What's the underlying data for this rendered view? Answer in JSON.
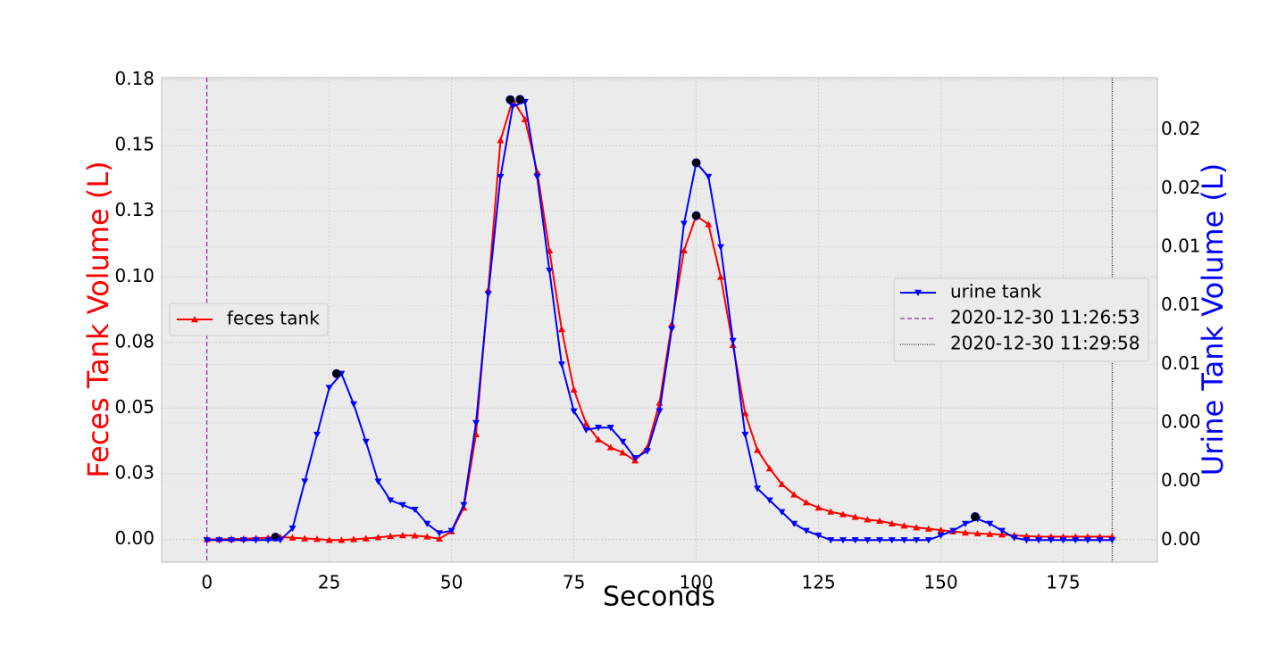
{
  "chart_data": {
    "type": "line",
    "xlabel": "Seconds",
    "ylabel": "Feces Tank Volume (L)",
    "y2label": "Urine Tank Volume (L)",
    "xlim": [
      -9.25,
      194.25
    ],
    "xticks": [
      0,
      25,
      50,
      75,
      100,
      125,
      150,
      175
    ],
    "ylim": [
      -0.0087,
      0.1759
    ],
    "yticks": [
      {
        "value": 0,
        "label": "0.00"
      },
      {
        "value": 0.025,
        "label": "0.03"
      },
      {
        "value": 0.05,
        "label": "0.05"
      },
      {
        "value": 0.075,
        "label": "0.08"
      },
      {
        "value": 0.1,
        "label": "0.10"
      },
      {
        "value": 0.125,
        "label": "0.13"
      },
      {
        "value": 0.15,
        "label": "0.15"
      },
      {
        "value": 0.175,
        "label": "0.18"
      }
    ],
    "y2lim": [
      -0.00094,
      0.01973
    ],
    "y2ticks": [
      {
        "value": 0,
        "label": "0.00"
      },
      {
        "value": 0.0025,
        "label": "0.00"
      },
      {
        "value": 0.005,
        "label": "0.00"
      },
      {
        "value": 0.0075,
        "label": "0.01"
      },
      {
        "value": 0.01,
        "label": "0.01"
      },
      {
        "value": 0.0125,
        "label": "0.01"
      },
      {
        "value": 0.015,
        "label": "0.02"
      },
      {
        "value": 0.0175,
        "label": "0.02"
      }
    ],
    "grid": true,
    "x": [
      0,
      2.5,
      5,
      7.5,
      10,
      12.5,
      15,
      17.5,
      20,
      22.5,
      25,
      27.5,
      30,
      32.5,
      35,
      37.5,
      40,
      42.5,
      45,
      47.5,
      50,
      52.5,
      55,
      57.5,
      60,
      62.5,
      65,
      67.5,
      70,
      72.5,
      75,
      77.5,
      80,
      82.5,
      85,
      87.5,
      90,
      92.5,
      95,
      97.5,
      100,
      102.5,
      105,
      107.5,
      110,
      112.5,
      115,
      117.5,
      120,
      122.5,
      125,
      127.5,
      130,
      132.5,
      135,
      137.5,
      140,
      142.5,
      145,
      147.5,
      150,
      152.5,
      155,
      157.5,
      160,
      162.5,
      165,
      167.5,
      170,
      172.5,
      175,
      177.5,
      180,
      182.5,
      185
    ],
    "series": [
      {
        "name": "feces tank",
        "color": "#ff0000",
        "marker": "up",
        "legend": "left",
        "values": [
          0,
          0,
          0.0001,
          0.0002,
          0.0004,
          0.0006,
          0.0008,
          0.0006,
          0.0003,
          0.0001,
          -0.0003,
          -0.0003,
          0,
          0.0003,
          0.0007,
          0.0012,
          0.0015,
          0.0014,
          0.001,
          0.0002,
          0.003,
          0.012,
          0.04,
          0.095,
          0.152,
          0.1675,
          0.16,
          0.14,
          0.11,
          0.08,
          0.057,
          0.044,
          0.038,
          0.035,
          0.033,
          0.03,
          0.035,
          0.052,
          0.082,
          0.11,
          0.1233,
          0.12,
          0.1,
          0.074,
          0.048,
          0.034,
          0.027,
          0.021,
          0.017,
          0.014,
          0.012,
          0.0105,
          0.0095,
          0.0085,
          0.0075,
          0.007,
          0.006,
          0.0052,
          0.0045,
          0.004,
          0.0035,
          0.003,
          0.0025,
          0.0022,
          0.002,
          0.0018,
          0.0015,
          0.0012,
          0.001,
          0.001,
          0.001,
          0.001,
          0.001,
          0.001,
          0.001
        ],
        "peaks_x": [
          14,
          62,
          100
        ],
        "peaks_y": [
          0.0008,
          0.1675,
          0.1233
        ]
      },
      {
        "name": "urine tank",
        "color": "#0000ff",
        "marker": "down",
        "axis": "y2",
        "legend": "right",
        "values": [
          0,
          0,
          0,
          0,
          0,
          0,
          0,
          0.0005,
          0.0025,
          0.0045,
          0.0065,
          0.0071,
          0.0058,
          0.0042,
          0.0025,
          0.0017,
          0.0015,
          0.0013,
          0.0007,
          0.0003,
          0.0004,
          0.0015,
          0.005,
          0.0105,
          0.0155,
          0.0185,
          0.0187,
          0.0155,
          0.0115,
          0.0075,
          0.0055,
          0.0047,
          0.0048,
          0.0048,
          0.0042,
          0.0035,
          0.0038,
          0.0055,
          0.009,
          0.0135,
          0.0161,
          0.0155,
          0.0125,
          0.0085,
          0.0045,
          0.0022,
          0.0017,
          0.0012,
          0.0007,
          0.0004,
          0.0002,
          0,
          0,
          0,
          0,
          0,
          0,
          0,
          0,
          0,
          0.0002,
          0.0004,
          0.0007,
          0.0009,
          0.0007,
          0.0004,
          0.0001,
          0,
          0,
          0,
          0,
          0,
          0,
          0,
          0
        ],
        "peaks_x": [
          26.5,
          64,
          100,
          157
        ],
        "peaks_y": [
          0.0071,
          0.0188,
          0.0161,
          0.001
        ]
      }
    ],
    "vlines": [
      {
        "x": 0,
        "label": "2020-12-30 11:26:53",
        "color": "#800080",
        "dash": "5,3"
      },
      {
        "x": 185,
        "label": "2020-12-30 11:29:58",
        "color": "#000000",
        "dash": "1,1.5"
      }
    ]
  }
}
